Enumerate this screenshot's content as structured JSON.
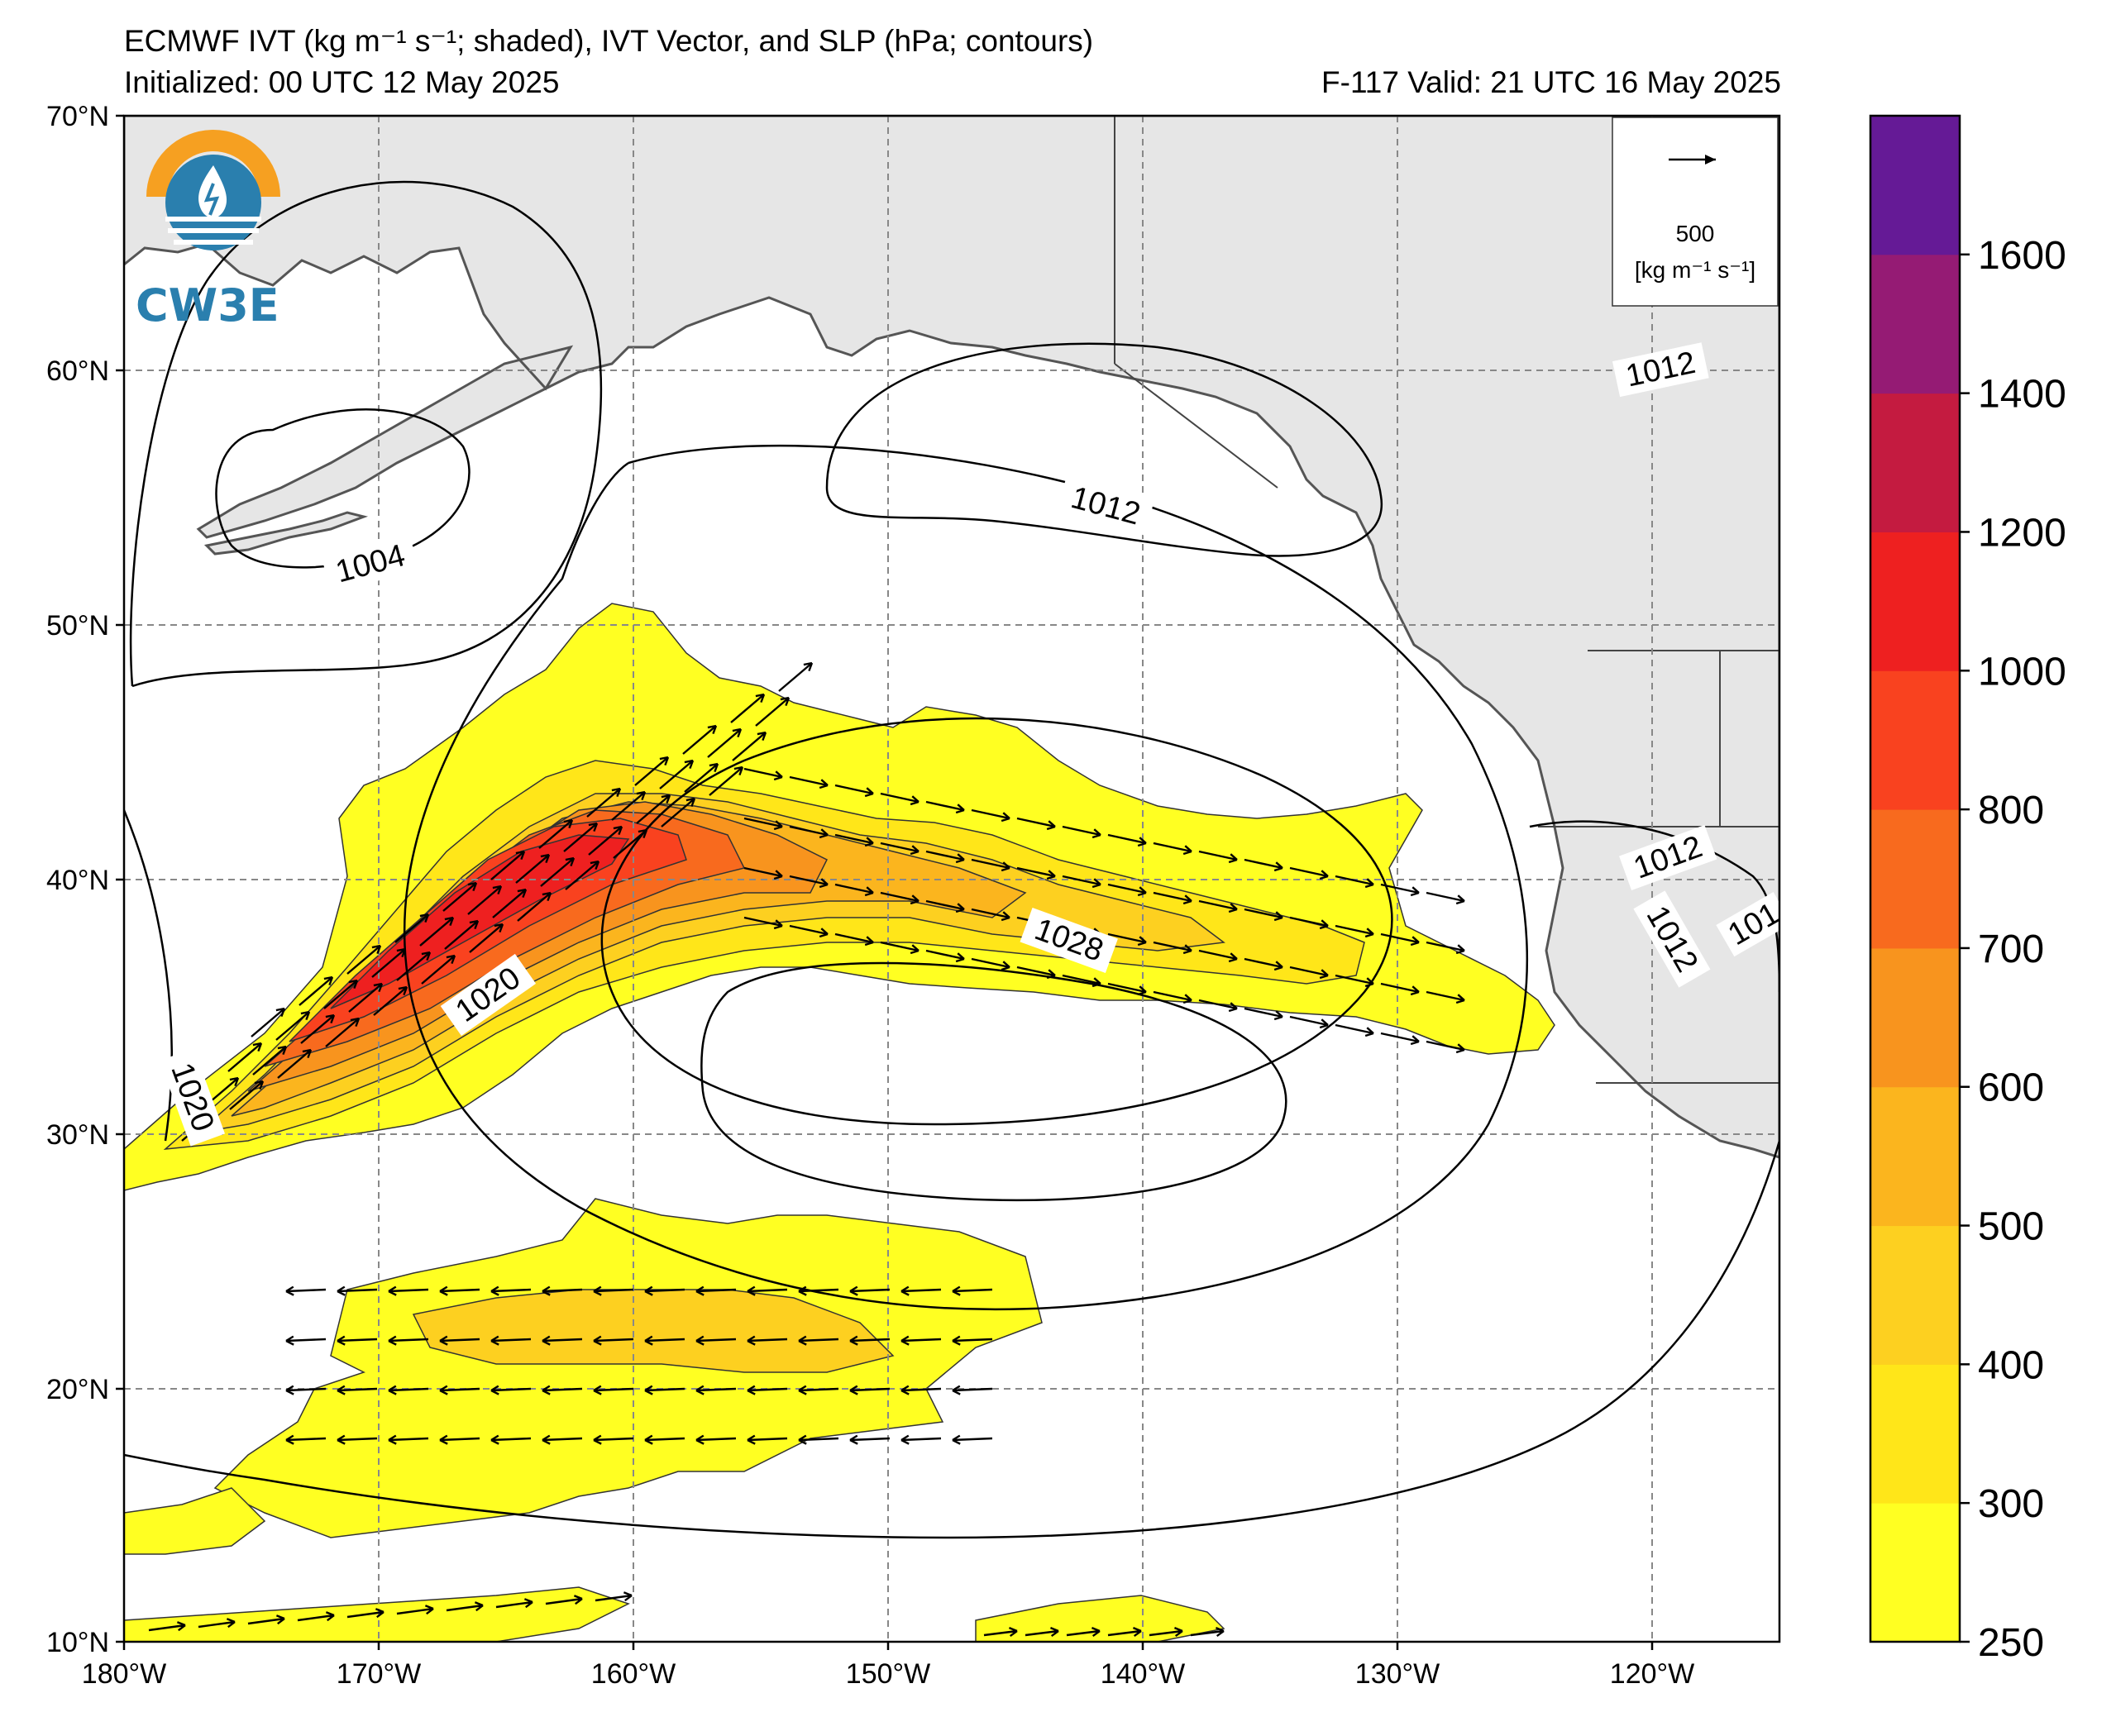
{
  "header": {
    "title": "ECMWF IVT (kg m⁻¹ s⁻¹; shaded), IVT Vector, and SLP (hPa; contours)",
    "initialized": "Initialized: 00 UTC 12 May 2025",
    "valid": "F-117  Valid: 21 UTC 16 May 2025"
  },
  "logo": {
    "text": "CW3E"
  },
  "axes": {
    "lat_labels": [
      "70°N",
      "60°N",
      "50°N",
      "40°N",
      "30°N",
      "20°N",
      "10°N"
    ],
    "lon_labels": [
      "180°W",
      "170°W",
      "160°W",
      "150°W",
      "140°W",
      "130°W",
      "120°W"
    ]
  },
  "vector_legend": {
    "value": "500",
    "units": "[kg m⁻¹ s⁻¹]"
  },
  "colorbar": {
    "ticks": [
      "1600",
      "1400",
      "1200",
      "1000",
      "800",
      "700",
      "600",
      "500",
      "400",
      "300",
      "250"
    ],
    "colors": [
      "#ffff22",
      "#ffe619",
      "#fdd020",
      "#fbb51e",
      "#f8941e",
      "#f86a1e",
      "#f9421f",
      "#ee2020",
      "#c41b40",
      "#951b74",
      "#651a96"
    ]
  },
  "contour_labels": [
    "1004",
    "1012",
    "1012",
    "1020",
    "1020",
    "1028",
    "1012",
    "1012",
    "101"
  ],
  "colors": {
    "land": "#e6e6e6",
    "coast": "#555555",
    "grid": "#888888"
  }
}
